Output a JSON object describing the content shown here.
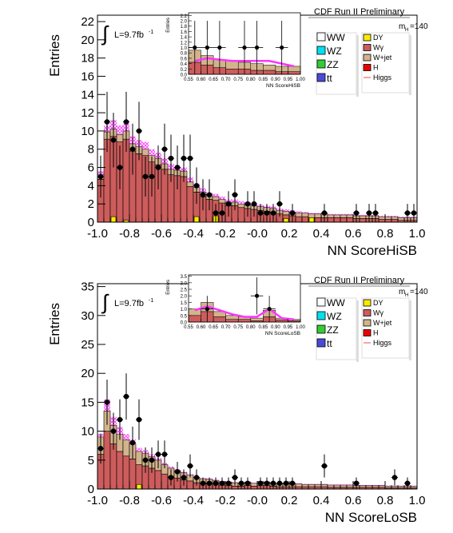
{
  "chart_data": [
    {
      "type": "bar",
      "title": "CDF Run II Preliminary",
      "xlabel": "NN ScoreHiSB",
      "ylabel": "Entries",
      "xlim": [
        -1.0,
        1.0
      ],
      "ylim": [
        0,
        22.7
      ],
      "xticks": [
        "-1.0",
        "-0.8",
        "-0.6",
        "-0.4",
        "-0.2",
        "-0.0",
        "0.2",
        "0.4",
        "0.6",
        "0.8",
        "1.0"
      ],
      "yticks": [
        "0",
        "2",
        "4",
        "6",
        "8",
        "10",
        "12",
        "14",
        "16",
        "18",
        "20",
        "22"
      ],
      "lumi_label": "L=9.7fb",
      "lumi_sup": "-1",
      "mass_label": "m",
      "mass_sub": "H",
      "mass_value": "=140",
      "legend_left": [
        {
          "name": "WW",
          "color": "#ffffff"
        },
        {
          "name": "WZ",
          "color": "#00e0f0"
        },
        {
          "name": "ZZ",
          "color": "#33cc33"
        },
        {
          "name": "tt",
          "color": "#4a4ad8"
        }
      ],
      "legend_right": [
        {
          "name": "DY",
          "color": "#f7ec00"
        },
        {
          "name": "Wγ",
          "color": "#cd5c5c"
        },
        {
          "name": "W+jet",
          "color": "#d2b48c"
        },
        {
          "name": "H",
          "color": "#ee0000"
        },
        {
          "name": "Higgs",
          "color": "#ff4444"
        }
      ],
      "bin_width": 0.04,
      "x_start": -1.0,
      "bkg_total": [
        5.2,
        9.9,
        10.2,
        9.6,
        10.0,
        8.6,
        8.3,
        8.0,
        7.3,
        7.0,
        6.4,
        5.8,
        5.7,
        5.6,
        4.4,
        3.8,
        3.3,
        2.9,
        2.8,
        2.5,
        2.2,
        2.2,
        2.0,
        1.9,
        1.8,
        1.7,
        1.6,
        1.5,
        1.3,
        1.2,
        1.1,
        1.0,
        1.0,
        0.9,
        0.9,
        0.9,
        0.8,
        0.8,
        0.8,
        0.8,
        0.7,
        0.7,
        0.7,
        0.7,
        0.6,
        0.6,
        0.6,
        0.5,
        0.5,
        0.5
      ],
      "bkg_wjet": [
        0.5,
        0.8,
        0.8,
        0.8,
        0.9,
        0.8,
        0.8,
        0.7,
        0.7,
        0.7,
        0.6,
        0.6,
        0.6,
        0.6,
        0.5,
        0.5,
        0.5,
        0.4,
        0.4,
        0.4,
        0.4,
        0.4,
        0.4,
        0.4,
        0.4,
        0.4,
        0.4,
        0.4,
        0.4,
        0.4,
        0.4,
        0.4,
        0.4,
        0.4,
        0.4,
        0.4,
        0.3,
        0.3,
        0.3,
        0.3,
        0.3,
        0.3,
        0.3,
        0.3,
        0.3,
        0.3,
        0.3,
        0.3,
        0.3,
        0.3
      ],
      "bkg_dy": [
        0,
        0,
        0.6,
        0,
        0.2,
        0,
        0,
        0,
        0,
        0,
        0,
        0,
        0,
        0,
        0,
        0.6,
        0,
        0,
        0.7,
        0,
        0,
        0,
        0,
        0,
        0,
        0,
        0,
        0,
        0,
        0.4,
        0,
        0,
        0,
        0.5,
        0,
        0,
        0,
        0,
        0,
        0,
        0,
        0,
        0,
        0,
        0,
        0,
        0,
        0,
        0,
        0
      ],
      "signal": [
        5.6,
        10.6,
        11.2,
        10.6,
        10.8,
        9.4,
        9.0,
        8.8,
        8.0,
        7.6,
        7.0,
        6.4,
        6.2,
        6.0,
        4.9,
        4.2,
        3.7,
        3.2,
        3.1,
        2.8,
        2.5,
        2.5,
        2.3,
        2.2,
        2.0,
        1.9,
        1.8,
        1.7,
        1.5,
        1.4,
        1.3,
        1.2,
        1.1,
        1.0,
        1.0,
        1.0,
        0.9,
        0.9,
        0.9,
        0.9,
        0.8,
        0.8,
        0.8,
        0.8,
        0.7,
        0.7,
        0.7,
        0.6,
        0.6,
        0.6
      ],
      "data_points": [
        {
          "x": -0.98,
          "y": 5,
          "err": 2.3
        },
        {
          "x": -0.94,
          "y": 11,
          "err": 3.3
        },
        {
          "x": -0.9,
          "y": 9,
          "err": 3.0
        },
        {
          "x": -0.86,
          "y": 6,
          "err": 2.4
        },
        {
          "x": -0.82,
          "y": 11,
          "err": 3.3
        },
        {
          "x": -0.78,
          "y": 8,
          "err": 2.8
        },
        {
          "x": -0.74,
          "y": 10,
          "err": 3.2
        },
        {
          "x": -0.7,
          "y": 5,
          "err": 2.2
        },
        {
          "x": -0.66,
          "y": 5,
          "err": 2.2
        },
        {
          "x": -0.62,
          "y": 6,
          "err": 2.4
        },
        {
          "x": -0.58,
          "y": 8,
          "err": 2.8
        },
        {
          "x": -0.54,
          "y": 7,
          "err": 2.6
        },
        {
          "x": -0.5,
          "y": 6,
          "err": 2.4
        },
        {
          "x": -0.46,
          "y": 7,
          "err": 2.6
        },
        {
          "x": -0.42,
          "y": 7,
          "err": 2.6
        },
        {
          "x": -0.38,
          "y": 4,
          "err": 2.0
        },
        {
          "x": -0.34,
          "y": 3,
          "err": 1.7
        },
        {
          "x": -0.3,
          "y": 3,
          "err": 1.7
        },
        {
          "x": -0.26,
          "y": 1,
          "err": 1.0
        },
        {
          "x": -0.22,
          "y": 1,
          "err": 1.0
        },
        {
          "x": -0.18,
          "y": 2,
          "err": 1.4
        },
        {
          "x": -0.14,
          "y": 3,
          "err": 1.7
        },
        {
          "x": -0.06,
          "y": 2,
          "err": 1.4
        },
        {
          "x": -0.02,
          "y": 2,
          "err": 1.4
        },
        {
          "x": 0.02,
          "y": 1,
          "err": 1.0
        },
        {
          "x": 0.06,
          "y": 1,
          "err": 1.0
        },
        {
          "x": 0.1,
          "y": 1,
          "err": 1.0
        },
        {
          "x": 0.14,
          "y": 2,
          "err": 1.4
        },
        {
          "x": 0.22,
          "y": 1,
          "err": 1.0
        },
        {
          "x": 0.42,
          "y": 1,
          "err": 1.0
        },
        {
          "x": 0.62,
          "y": 1,
          "err": 1.0
        },
        {
          "x": 0.7,
          "y": 1,
          "err": 1.0
        },
        {
          "x": 0.74,
          "y": 1,
          "err": 1.0
        },
        {
          "x": 0.94,
          "y": 1,
          "err": 1.0
        },
        {
          "x": 0.98,
          "y": 1,
          "err": 1.0
        }
      ],
      "inset": {
        "xlabel": "NN ScoreHiSB",
        "ylabel": "Entries",
        "xlim": [
          0.55,
          1.0
        ],
        "ylim": [
          0,
          2.3
        ],
        "xticks": [
          "0.55",
          "0.60",
          "0.65",
          "0.70",
          "0.75",
          "0.80",
          "0.85",
          "0.90",
          "0.95",
          "1.00"
        ],
        "yticks": [
          "0.0",
          "0.2",
          "0.4",
          "0.6",
          "0.8",
          "1.0",
          "1.2",
          "1.4",
          "1.6",
          "1.8",
          "2.0",
          "2.2"
        ],
        "bins": [
          0.55,
          0.6,
          0.65,
          0.7,
          0.75,
          0.8,
          0.85,
          0.9,
          0.95,
          1.0
        ],
        "bkg_total": [
          0.9,
          0.7,
          0.55,
          0.5,
          0.45,
          0.4,
          0.35,
          0.3,
          0.3
        ],
        "bkg_wjet": [
          0.45,
          0.35,
          0.3,
          0.3,
          0.25,
          0.25,
          0.2,
          0.2,
          0.2
        ],
        "signal": [
          0.5,
          0.6,
          0.55,
          0.5,
          0.5,
          0.5,
          0.5,
          0.4,
          0.3
        ],
        "data_points": [
          {
            "x": 0.575,
            "y": 1.0,
            "err": 1.0
          },
          {
            "x": 0.625,
            "y": 1.0,
            "err": 1.0
          },
          {
            "x": 0.675,
            "y": 1.0,
            "err": 1.0
          },
          {
            "x": 0.775,
            "y": 1.0,
            "err": 1.0
          },
          {
            "x": 0.825,
            "y": 1.0,
            "err": 1.0
          },
          {
            "x": 0.925,
            "y": 1.0,
            "err": 1.0
          }
        ]
      }
    },
    {
      "type": "bar",
      "title": "CDF Run II Preliminary",
      "xlabel": "NN ScoreLoSB",
      "ylabel": "Entries",
      "xlim": [
        -1.0,
        1.0
      ],
      "ylim": [
        0,
        35.5
      ],
      "xticks": [
        "-1.0",
        "-0.8",
        "-0.6",
        "-0.4",
        "-0.2",
        "-0.0",
        "0.2",
        "0.4",
        "0.6",
        "0.8",
        "1.0"
      ],
      "yticks": [
        "0",
        "5",
        "10",
        "15",
        "20",
        "25",
        "30",
        "35"
      ],
      "lumi_label": "L=9.7fb",
      "lumi_sup": "-1",
      "mass_label": "m",
      "mass_sub": "H",
      "mass_value": "=140",
      "legend_left": [
        {
          "name": "WW",
          "color": "#ffffff"
        },
        {
          "name": "WZ",
          "color": "#00e0f0"
        },
        {
          "name": "ZZ",
          "color": "#33cc33"
        },
        {
          "name": "tt",
          "color": "#4a4ad8"
        }
      ],
      "legend_right": [
        {
          "name": "DY",
          "color": "#f7ec00"
        },
        {
          "name": "Wγ",
          "color": "#cd5c5c"
        },
        {
          "name": "W+jet",
          "color": "#d2b48c"
        },
        {
          "name": "H",
          "color": "#ee0000"
        },
        {
          "name": "Higgs",
          "color": "#ff4444"
        }
      ],
      "bin_width": 0.04,
      "x_start": -1.0,
      "bkg_total": [
        9.0,
        13.5,
        11.0,
        9.5,
        8.5,
        7.8,
        6.5,
        6.2,
        5.6,
        5.0,
        4.2,
        3.6,
        3.2,
        2.8,
        2.4,
        2.0,
        1.8,
        1.7,
        1.5,
        1.3,
        1.2,
        1.1,
        1.0,
        1.2,
        1.0,
        1.3,
        1.2,
        1.0,
        0.9,
        0.9,
        0.9,
        0.9,
        0.8,
        0.8,
        0.8,
        0.8,
        0.7,
        0.7,
        0.7,
        0.7,
        0.6,
        0.6,
        0.6,
        0.6,
        0.6,
        0.5,
        0.5,
        0.5,
        0.5,
        0.5
      ],
      "bkg_wjet": [
        3.0,
        3.5,
        3.2,
        3.0,
        2.8,
        2.6,
        2.3,
        2.2,
        2.0,
        1.8,
        1.6,
        1.4,
        1.3,
        1.2,
        1.0,
        0.9,
        0.8,
        0.8,
        0.7,
        0.6,
        0.6,
        0.6,
        0.5,
        0.6,
        0.5,
        0.7,
        0.6,
        0.5,
        0.5,
        0.5,
        0.5,
        0.5,
        0.4,
        0.4,
        0.4,
        0.4,
        0.4,
        0.4,
        0.4,
        0.4,
        0.3,
        0.3,
        0.3,
        0.3,
        0.3,
        0.3,
        0.3,
        0.3,
        0.3,
        0.3
      ],
      "bkg_dy": [
        0,
        0,
        0,
        0,
        0,
        0,
        0.8,
        0,
        0,
        0,
        0,
        0,
        0,
        0,
        0,
        0,
        0,
        0,
        0,
        0,
        0,
        0,
        0,
        0,
        0,
        0,
        0,
        0,
        0,
        0,
        0,
        0,
        0,
        0,
        0,
        0,
        0,
        0,
        0,
        0,
        0,
        0,
        0,
        0,
        0,
        0,
        0,
        0,
        0,
        0
      ],
      "signal": [
        9.5,
        15.5,
        12.5,
        10.7,
        9.5,
        8.6,
        7.1,
        6.7,
        6.0,
        5.4,
        4.5,
        3.9,
        3.4,
        3.0,
        2.6,
        2.2,
        1.9,
        1.8,
        1.6,
        1.4,
        1.3,
        1.2,
        1.1,
        1.3,
        1.1,
        1.4,
        1.3,
        1.1,
        1.0,
        1.0,
        1.0,
        1.0,
        0.9,
        0.9,
        0.9,
        0.9,
        0.8,
        0.8,
        0.8,
        0.8,
        0.7,
        0.7,
        0.7,
        0.7,
        0.7,
        0.6,
        0.6,
        0.6,
        0.6,
        0.6
      ],
      "data_points": [
        {
          "x": -0.98,
          "y": 7,
          "err": 2.6
        },
        {
          "x": -0.94,
          "y": 15,
          "err": 3.9
        },
        {
          "x": -0.9,
          "y": 10,
          "err": 3.2
        },
        {
          "x": -0.86,
          "y": 12,
          "err": 3.5
        },
        {
          "x": -0.82,
          "y": 16,
          "err": 4.0
        },
        {
          "x": -0.78,
          "y": 8,
          "err": 2.8
        },
        {
          "x": -0.74,
          "y": 12,
          "err": 3.5
        },
        {
          "x": -0.7,
          "y": 5,
          "err": 2.2
        },
        {
          "x": -0.66,
          "y": 5,
          "err": 2.2
        },
        {
          "x": -0.62,
          "y": 6,
          "err": 2.4
        },
        {
          "x": -0.58,
          "y": 6,
          "err": 2.4
        },
        {
          "x": -0.54,
          "y": 2,
          "err": 1.4
        },
        {
          "x": -0.5,
          "y": 3,
          "err": 1.7
        },
        {
          "x": -0.46,
          "y": 2,
          "err": 1.4
        },
        {
          "x": -0.42,
          "y": 4,
          "err": 2.0
        },
        {
          "x": -0.38,
          "y": 2,
          "err": 1.4
        },
        {
          "x": -0.34,
          "y": 1,
          "err": 1.0
        },
        {
          "x": -0.3,
          "y": 1,
          "err": 1.0
        },
        {
          "x": -0.26,
          "y": 1,
          "err": 1.0
        },
        {
          "x": -0.22,
          "y": 1,
          "err": 1.0
        },
        {
          "x": -0.18,
          "y": 1,
          "err": 1.0
        },
        {
          "x": -0.14,
          "y": 2,
          "err": 1.4
        },
        {
          "x": -0.1,
          "y": 1,
          "err": 1.0
        },
        {
          "x": -0.06,
          "y": 1,
          "err": 1.0
        },
        {
          "x": 0.02,
          "y": 1,
          "err": 1.0
        },
        {
          "x": 0.06,
          "y": 1,
          "err": 1.0
        },
        {
          "x": 0.1,
          "y": 1,
          "err": 1.0
        },
        {
          "x": 0.14,
          "y": 1,
          "err": 1.0
        },
        {
          "x": 0.18,
          "y": 1,
          "err": 1.0
        },
        {
          "x": 0.22,
          "y": 1,
          "err": 1.0
        },
        {
          "x": 0.42,
          "y": 4,
          "err": 2.0
        },
        {
          "x": 0.62,
          "y": 1,
          "err": 1.0
        },
        {
          "x": 0.86,
          "y": 2,
          "err": 1.4
        },
        {
          "x": 0.94,
          "y": 1,
          "err": 1.0
        }
      ],
      "inset": {
        "xlabel": "NN ScoreLoSB",
        "ylabel": "Entries",
        "xlim": [
          0.55,
          1.0
        ],
        "ylim": [
          0,
          3.6
        ],
        "xticks": [
          "0.55",
          "0.60",
          "0.65",
          "0.70",
          "0.75",
          "0.80",
          "0.85",
          "0.90",
          "0.95",
          "1.00"
        ],
        "yticks": [
          "0.0",
          "0.5",
          "1.0",
          "1.5",
          "2.0",
          "2.5",
          "3.0",
          "3.5"
        ],
        "bins": [
          0.55,
          0.6,
          0.65,
          0.7,
          0.75,
          0.8,
          0.85,
          0.9,
          0.95,
          1.0
        ],
        "bkg_total": [
          1.0,
          1.5,
          0.8,
          0.5,
          0.4,
          0.3,
          0.9,
          0.3,
          0.2
        ],
        "bkg_wjet": [
          0.5,
          0.7,
          0.4,
          0.3,
          0.2,
          0.2,
          0.5,
          0.15,
          0.1
        ],
        "signal": [
          0.9,
          1.2,
          0.9,
          0.6,
          0.4,
          0.4,
          1.0,
          0.3,
          0.2
        ],
        "data_points": [
          {
            "x": 0.625,
            "y": 1.0,
            "err": 1.0
          },
          {
            "x": 0.825,
            "y": 2.0,
            "err": 1.41
          },
          {
            "x": 0.875,
            "y": 1.0,
            "err": 1.0
          }
        ]
      }
    }
  ]
}
